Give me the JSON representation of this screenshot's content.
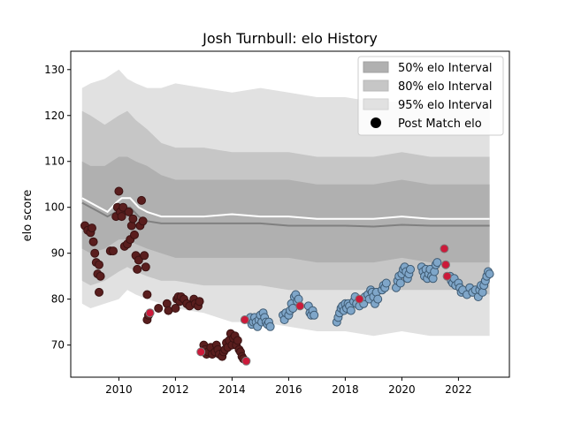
{
  "chart_data": {
    "type": "scatter",
    "title": "Josh Turnbull: elo History",
    "xlabel": "",
    "ylabel": "elo score",
    "xlim": [
      2008.3,
      2023.8
    ],
    "ylim": [
      63,
      134
    ],
    "x_ticks": [
      2010,
      2012,
      2014,
      2016,
      2018,
      2020,
      2022
    ],
    "x_tick_labels": [
      "2010",
      "2012",
      "2014",
      "2016",
      "2018",
      "2020",
      "2022"
    ],
    "y_ticks": [
      70,
      80,
      90,
      100,
      110,
      120,
      130
    ],
    "y_tick_labels": [
      "70",
      "80",
      "90",
      "100",
      "110",
      "120",
      "130"
    ],
    "grid": false,
    "legend_position": "top-right",
    "legend": [
      {
        "label": "50% elo Interval",
        "kind": "band",
        "color": "#b0b0b0"
      },
      {
        "label": "80% elo Interval",
        "kind": "band",
        "color": "#c6c6c6"
      },
      {
        "label": "95% elo Interval",
        "kind": "band",
        "color": "#e1e1e1"
      },
      {
        "label": "Post Match elo",
        "kind": "marker",
        "color": "#000000"
      }
    ],
    "bands": {
      "x": [
        2008.7,
        2009.0,
        2009.5,
        2010.0,
        2010.3,
        2010.6,
        2011.0,
        2011.5,
        2012.0,
        2013.0,
        2014.0,
        2015.0,
        2016.0,
        2017.0,
        2018.0,
        2019.0,
        2020.0,
        2021.0,
        2022.0,
        2023.1
      ],
      "p95_low": [
        79,
        78,
        79,
        80,
        82,
        81,
        80,
        79,
        78,
        77,
        75,
        75,
        74,
        73,
        73,
        72,
        73,
        72,
        72,
        72
      ],
      "p95_high": [
        126,
        127,
        128,
        130,
        128,
        127,
        126,
        126,
        127,
        126,
        125,
        126,
        125,
        124,
        124,
        123,
        123,
        122,
        123,
        122
      ],
      "p80_low": [
        84,
        83,
        84,
        86,
        87,
        86,
        85,
        84,
        84,
        83,
        83,
        83,
        82,
        82,
        82,
        82,
        82,
        82,
        82,
        81
      ],
      "p80_high": [
        121,
        120,
        118,
        120,
        121,
        119,
        117,
        114,
        113,
        113,
        112,
        112,
        112,
        111,
        111,
        111,
        112,
        111,
        111,
        111
      ],
      "p50_low": [
        91,
        90,
        91,
        93,
        93,
        92,
        91,
        90,
        89,
        89,
        89,
        89,
        89,
        88,
        88,
        88,
        89,
        88,
        88,
        88
      ],
      "p50_high": [
        110,
        109,
        109,
        111,
        111,
        110,
        109,
        107,
        106,
        106,
        106,
        106,
        106,
        105,
        105,
        105,
        106,
        105,
        105,
        105
      ]
    },
    "lines": [
      {
        "color": "#808080",
        "x": [
          2008.7,
          2009.0,
          2009.3,
          2009.6,
          2009.9,
          2010.1,
          2010.4,
          2010.7,
          2011.0,
          2011.5,
          2012.0,
          2013.0,
          2014.0,
          2015.0,
          2016.0,
          2017.0,
          2018.0,
          2019.0,
          2020.0,
          2021.0,
          2022.0,
          2023.1
        ],
        "y": [
          101,
          100,
          99,
          98,
          99,
          100,
          100,
          98,
          97,
          96.5,
          96.5,
          96.5,
          96.5,
          96.5,
          96,
          96,
          96,
          95.8,
          96.2,
          96,
          96,
          96
        ]
      },
      {
        "color": "#ffffff",
        "x": [
          2008.7,
          2009.0,
          2009.3,
          2009.6,
          2009.9,
          2010.1,
          2010.4,
          2010.7,
          2011.0,
          2011.5,
          2012.0,
          2013.0,
          2014.0,
          2015.0,
          2016.0,
          2017.0,
          2018.0,
          2019.0,
          2020.0,
          2021.0,
          2022.0,
          2023.1
        ],
        "y": [
          102,
          101,
          100,
          99,
          101,
          102,
          102,
          100,
          99,
          98,
          98,
          98,
          98.5,
          98,
          98,
          97.5,
          97.5,
          97.5,
          98,
          97.5,
          97.5,
          97.5
        ]
      }
    ],
    "series": [
      {
        "color": "#5a1e1e",
        "edge": "#3a1212",
        "points": [
          [
            2008.8,
            96
          ],
          [
            2008.9,
            95
          ],
          [
            2009.0,
            94.5
          ],
          [
            2009.05,
            95.5
          ],
          [
            2009.1,
            92.5
          ],
          [
            2009.15,
            90
          ],
          [
            2009.2,
            88
          ],
          [
            2009.25,
            85.5
          ],
          [
            2009.3,
            81.5
          ],
          [
            2009.3,
            87.5
          ],
          [
            2009.35,
            85
          ],
          [
            2009.7,
            90.5
          ],
          [
            2009.8,
            90.5
          ],
          [
            2009.9,
            98
          ],
          [
            2009.95,
            100
          ],
          [
            2010.0,
            103.5
          ],
          [
            2010.05,
            99
          ],
          [
            2010.1,
            98
          ],
          [
            2010.15,
            100
          ],
          [
            2010.2,
            91.5
          ],
          [
            2010.3,
            92
          ],
          [
            2010.35,
            99
          ],
          [
            2010.4,
            93
          ],
          [
            2010.45,
            96
          ],
          [
            2010.5,
            97.5
          ],
          [
            2010.55,
            94
          ],
          [
            2010.6,
            89.5
          ],
          [
            2010.65,
            86.5
          ],
          [
            2010.7,
            88.5
          ],
          [
            2010.75,
            96
          ],
          [
            2010.8,
            101.5
          ],
          [
            2010.85,
            97
          ],
          [
            2010.9,
            89.5
          ],
          [
            2010.95,
            87
          ],
          [
            2011.0,
            81
          ],
          [
            2011.0,
            75.5
          ],
          [
            2011.05,
            76.5
          ],
          [
            2011.4,
            78
          ],
          [
            2011.7,
            79
          ],
          [
            2011.75,
            77.5
          ],
          [
            2012.0,
            78
          ],
          [
            2012.05,
            80
          ],
          [
            2012.1,
            80.5
          ],
          [
            2012.15,
            79.5
          ],
          [
            2012.2,
            80.5
          ],
          [
            2012.3,
            80
          ],
          [
            2012.4,
            79
          ],
          [
            2012.5,
            78.5
          ],
          [
            2012.65,
            80
          ],
          [
            2012.7,
            79
          ],
          [
            2012.8,
            78.5
          ],
          [
            2012.85,
            79.5
          ],
          [
            2013.0,
            70
          ],
          [
            2013.05,
            69
          ],
          [
            2013.1,
            68
          ],
          [
            2013.15,
            68.5
          ],
          [
            2013.25,
            69.5
          ],
          [
            2013.3,
            68
          ],
          [
            2013.4,
            68.5
          ],
          [
            2013.45,
            70
          ],
          [
            2013.5,
            69
          ],
          [
            2013.55,
            68
          ],
          [
            2013.65,
            67.5
          ],
          [
            2013.7,
            68.5
          ],
          [
            2013.75,
            69
          ],
          [
            2013.8,
            70.5
          ],
          [
            2013.85,
            69.5
          ],
          [
            2013.9,
            71
          ],
          [
            2013.95,
            72.5
          ],
          [
            2014.0,
            70
          ],
          [
            2014.05,
            71.5
          ],
          [
            2014.1,
            72
          ],
          [
            2014.15,
            70
          ],
          [
            2014.2,
            71
          ],
          [
            2014.25,
            69
          ],
          [
            2014.3,
            68.5
          ],
          [
            2014.35,
            67.5
          ],
          [
            2014.4,
            67
          ]
        ]
      },
      {
        "color": "#7fa6c9",
        "edge": "#3e5a72",
        "points": [
          [
            2014.6,
            75.5
          ],
          [
            2014.65,
            76
          ],
          [
            2014.7,
            74.5
          ],
          [
            2014.75,
            75
          ],
          [
            2014.8,
            76
          ],
          [
            2014.85,
            75
          ],
          [
            2014.9,
            74
          ],
          [
            2014.95,
            75.5
          ],
          [
            2015.0,
            76.5
          ],
          [
            2015.05,
            75
          ],
          [
            2015.1,
            77
          ],
          [
            2015.15,
            76
          ],
          [
            2015.2,
            75
          ],
          [
            2015.25,
            74.5
          ],
          [
            2015.3,
            75
          ],
          [
            2015.35,
            74
          ],
          [
            2015.8,
            76.5
          ],
          [
            2015.85,
            75.5
          ],
          [
            2015.9,
            77
          ],
          [
            2016.0,
            76.5
          ],
          [
            2016.05,
            77.5
          ],
          [
            2016.1,
            79
          ],
          [
            2016.15,
            78
          ],
          [
            2016.2,
            80.5
          ],
          [
            2016.25,
            81
          ],
          [
            2016.3,
            79.5
          ],
          [
            2016.35,
            80
          ],
          [
            2016.7,
            78.5
          ],
          [
            2016.75,
            77
          ],
          [
            2016.8,
            76.5
          ],
          [
            2016.85,
            77.5
          ],
          [
            2016.9,
            76.5
          ],
          [
            2017.7,
            75
          ],
          [
            2017.75,
            76
          ],
          [
            2017.8,
            77
          ],
          [
            2017.85,
            78
          ],
          [
            2017.9,
            78.5
          ],
          [
            2017.95,
            77.5
          ],
          [
            2018.0,
            79
          ],
          [
            2018.05,
            78
          ],
          [
            2018.1,
            79
          ],
          [
            2018.15,
            78.5
          ],
          [
            2018.2,
            77.5
          ],
          [
            2018.3,
            79.5
          ],
          [
            2018.35,
            80.5
          ],
          [
            2018.4,
            79
          ],
          [
            2018.5,
            78.5
          ],
          [
            2018.6,
            80
          ],
          [
            2018.65,
            79
          ],
          [
            2018.7,
            80.5
          ],
          [
            2018.8,
            81
          ],
          [
            2018.85,
            80
          ],
          [
            2018.9,
            82
          ],
          [
            2018.95,
            81.5
          ],
          [
            2019.0,
            80.5
          ],
          [
            2019.05,
            79
          ],
          [
            2019.1,
            81.5
          ],
          [
            2019.15,
            80
          ],
          [
            2019.3,
            82
          ],
          [
            2019.35,
            83
          ],
          [
            2019.4,
            82.5
          ],
          [
            2019.45,
            83.5
          ],
          [
            2019.8,
            82.5
          ],
          [
            2019.85,
            84
          ],
          [
            2019.9,
            85
          ],
          [
            2019.95,
            83.5
          ],
          [
            2020.0,
            85.5
          ],
          [
            2020.05,
            86.5
          ],
          [
            2020.1,
            87
          ],
          [
            2020.15,
            86
          ],
          [
            2020.2,
            84.5
          ],
          [
            2020.25,
            85.5
          ],
          [
            2020.3,
            86.5
          ],
          [
            2020.7,
            87
          ],
          [
            2020.75,
            86
          ],
          [
            2020.8,
            85
          ],
          [
            2020.85,
            86.5
          ],
          [
            2020.9,
            84.5
          ],
          [
            2020.95,
            85.5
          ],
          [
            2021.0,
            86.5
          ],
          [
            2021.05,
            85
          ],
          [
            2021.1,
            84.5
          ],
          [
            2021.15,
            86
          ],
          [
            2021.2,
            87.5
          ],
          [
            2021.25,
            88
          ],
          [
            2021.7,
            85
          ],
          [
            2021.75,
            84
          ],
          [
            2021.8,
            83.5
          ],
          [
            2021.85,
            84.5
          ],
          [
            2021.9,
            83
          ],
          [
            2022.0,
            83.5
          ],
          [
            2022.05,
            82.5
          ],
          [
            2022.1,
            81.5
          ],
          [
            2022.15,
            82
          ],
          [
            2022.3,
            81
          ],
          [
            2022.4,
            82.5
          ],
          [
            2022.5,
            81.5
          ],
          [
            2022.6,
            82
          ],
          [
            2022.7,
            80.5
          ],
          [
            2022.75,
            82
          ],
          [
            2022.8,
            83
          ],
          [
            2022.85,
            81.5
          ],
          [
            2022.9,
            83
          ],
          [
            2022.95,
            84
          ],
          [
            2023.0,
            85
          ],
          [
            2023.05,
            86
          ],
          [
            2023.1,
            85.5
          ]
        ]
      },
      {
        "color": "#cc1a3a",
        "edge": "#7a7a7a",
        "points": [
          [
            2011.1,
            77
          ],
          [
            2012.9,
            68.5
          ],
          [
            2014.45,
            75.5
          ],
          [
            2014.5,
            66.5
          ],
          [
            2016.4,
            78.5
          ],
          [
            2018.5,
            80
          ],
          [
            2021.5,
            91
          ],
          [
            2021.55,
            87.5
          ],
          [
            2021.6,
            85
          ]
        ]
      }
    ]
  }
}
